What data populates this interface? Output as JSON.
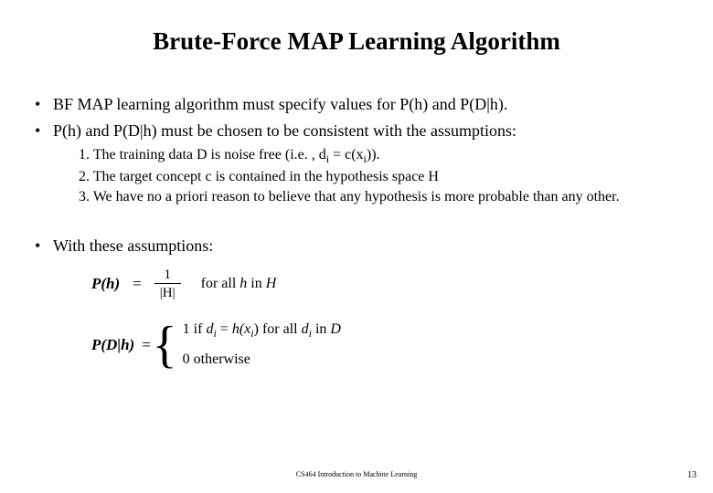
{
  "title": "Brute-Force MAP Learning Algorithm",
  "bullets": {
    "b1": "BF MAP learning algorithm must specify values for P(h) and  P(D|h).",
    "b2": "P(h) and P(D|h) must be chosen to be consistent with the assumptions:",
    "b3": "With these assumptions:"
  },
  "assumptions": {
    "a1_pre": "1. The training data D is noise free (i.e. , d",
    "a1_sub1": "i",
    "a1_mid": " = c(x",
    "a1_sub2": "i",
    "a1_post": ")).",
    "a2": "2. The target concept c is contained in the hypothesis space H",
    "a3": "3. We have no a priori reason to believe that any hypothesis is more probable than any other."
  },
  "equations": {
    "ph_lhs": "P(h)",
    "equals": "=",
    "frac_num": "1",
    "frac_den": "|H|",
    "ph_tail_for": "for all ",
    "ph_tail_h": "h",
    "ph_tail_in": " in ",
    "ph_tail_H": "H",
    "pdh_lhs": "P(D|h)",
    "case1_pre": "1 if ",
    "case1_di": "d",
    "case1_i": "i",
    "case1_mid": " = ",
    "case1_hx": "h(x",
    "case1_i2": "i",
    "case1_post": ") for all ",
    "case1_di2": "d",
    "case1_i3": "i",
    "case1_in": " in ",
    "case1_D": "D",
    "case2": "0 otherwise"
  },
  "footer": "CS464 Introduction to Machine Learning",
  "pagenum": "13"
}
